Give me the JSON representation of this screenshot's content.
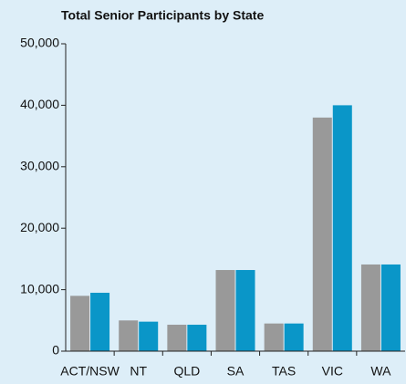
{
  "chart_data": {
    "type": "bar",
    "title": "Total Senior Participants by State",
    "categories": [
      "ACT/NSW",
      "NT",
      "QLD",
      "SA",
      "TAS",
      "VIC",
      "WA"
    ],
    "series": [
      {
        "color": "#999999",
        "values": [
          9000,
          5000,
          4300,
          13200,
          4500,
          38000,
          14100
        ]
      },
      {
        "color": "#0a96c8",
        "values": [
          9500,
          4800,
          4300,
          13200,
          4500,
          40000,
          14100
        ]
      }
    ],
    "ylim": [
      0,
      50000
    ],
    "yticks": [
      0,
      {
        "value": 10000,
        "label": "10,000"
      },
      {
        "value": 20000,
        "label": "20,000"
      },
      {
        "value": 30000,
        "label": "30,000"
      },
      {
        "value": 40000,
        "label": "40,000"
      },
      {
        "value": 50000,
        "label": "50,000"
      }
    ],
    "grid": false
  }
}
